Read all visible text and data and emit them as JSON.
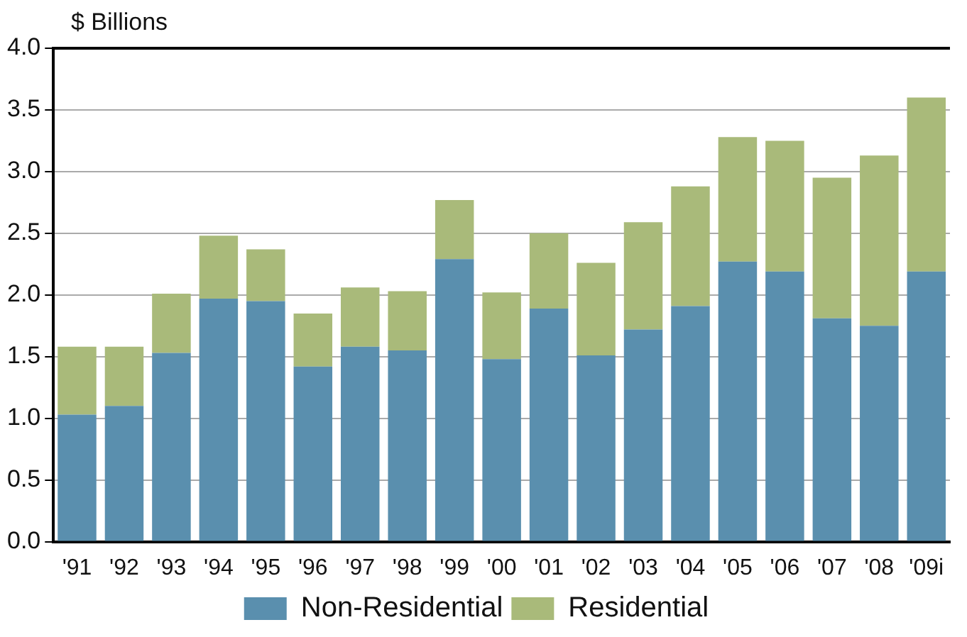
{
  "chart_data": {
    "type": "bar",
    "ylabel": "$ Billions",
    "stacked": true,
    "categories": [
      "'91",
      "'92",
      "'93",
      "'94",
      "'95",
      "'96",
      "'97",
      "'98",
      "'99",
      "'00",
      "'01",
      "'02",
      "'03",
      "'04",
      "'05",
      "'06",
      "'07",
      "'08",
      "'09i"
    ],
    "series": [
      {
        "name": "Non-Residential",
        "color": "#5a8fae",
        "values": [
          1.03,
          1.1,
          1.53,
          1.97,
          1.95,
          1.42,
          1.58,
          1.55,
          2.29,
          1.48,
          1.89,
          1.51,
          1.72,
          1.91,
          2.27,
          2.19,
          1.81,
          1.75,
          2.19
        ]
      },
      {
        "name": "Residential",
        "color": "#a9ba7a",
        "values": [
          0.55,
          0.48,
          0.48,
          0.51,
          0.42,
          0.43,
          0.48,
          0.48,
          0.48,
          0.54,
          0.61,
          0.75,
          0.87,
          0.97,
          1.01,
          1.06,
          1.14,
          1.38,
          1.41
        ]
      }
    ],
    "ylim": [
      0,
      4
    ],
    "yticks": [
      {
        "value": 0,
        "label": "0.0"
      },
      {
        "value": 0.5,
        "label": "0.5"
      },
      {
        "value": 1,
        "label": "1.0"
      },
      {
        "value": 1.5,
        "label": "1.5"
      },
      {
        "value": 2,
        "label": "2.0"
      },
      {
        "value": 2.5,
        "label": "2.5"
      },
      {
        "value": 3,
        "label": "3.0"
      },
      {
        "value": 3.5,
        "label": "3.5"
      },
      {
        "value": 4,
        "label": "4.0"
      }
    ],
    "grid": "y",
    "legend": "bottom"
  }
}
